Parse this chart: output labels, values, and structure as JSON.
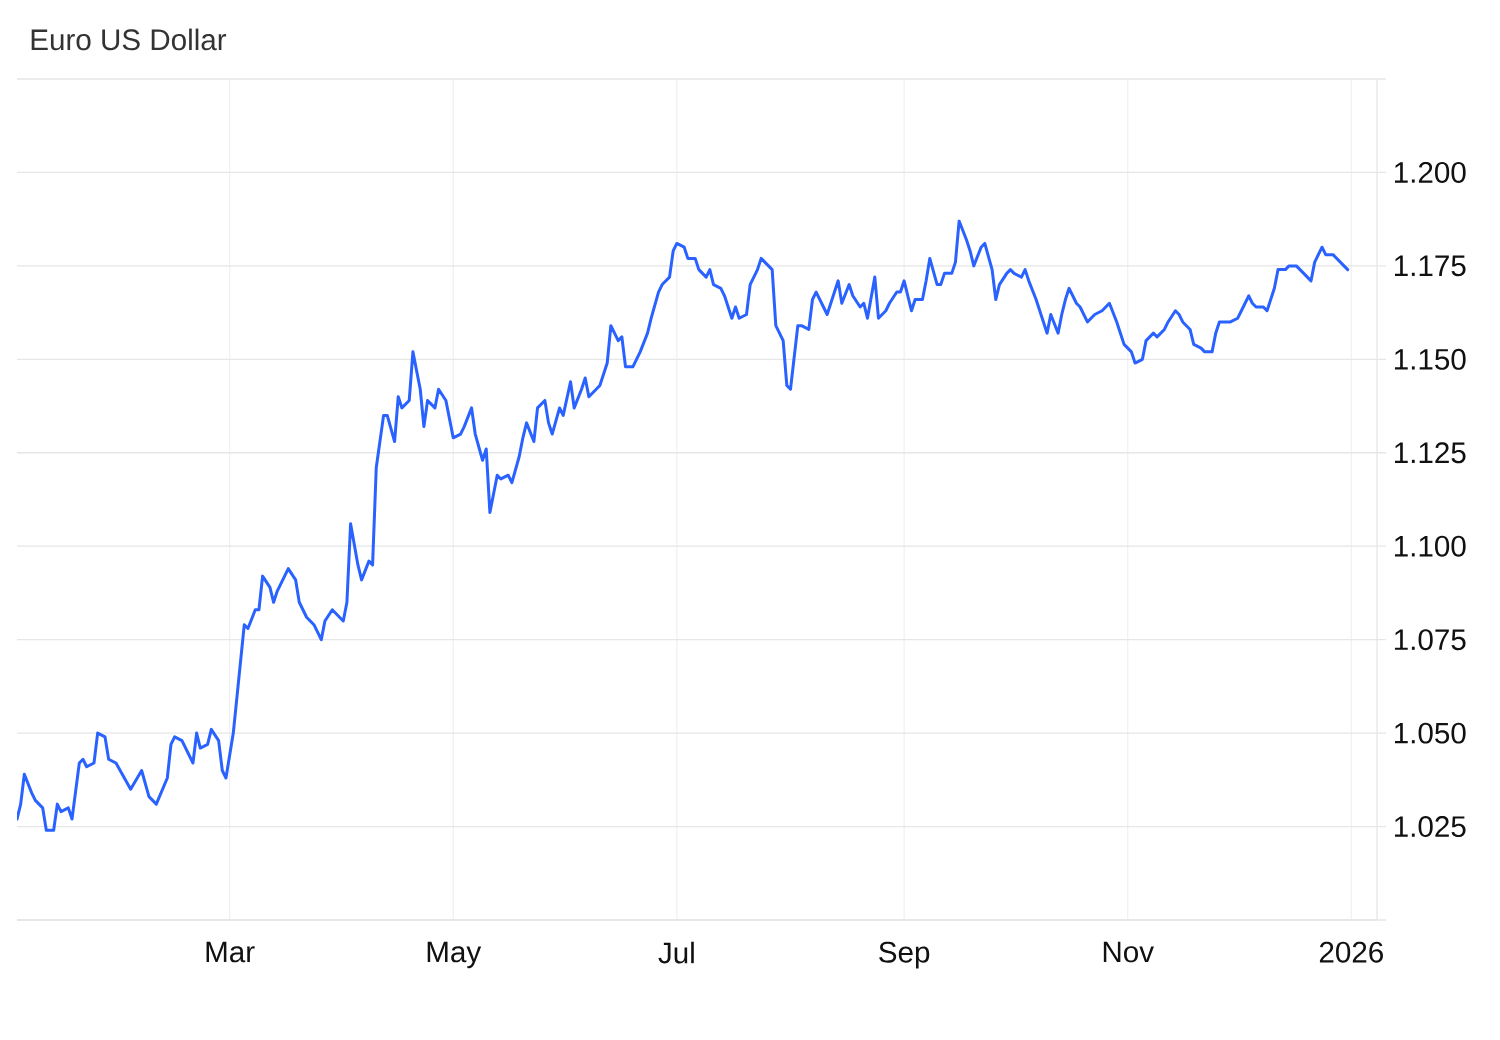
{
  "chart_data": {
    "type": "line",
    "title": "Euro US Dollar",
    "x": [
      "2025-01-02",
      "2025-01-03",
      "2025-01-04",
      "2025-01-06",
      "2025-01-07",
      "2025-01-09",
      "2025-01-10",
      "2025-01-12",
      "2025-01-13",
      "2025-01-14",
      "2025-01-16",
      "2025-01-17",
      "2025-01-19",
      "2025-01-20",
      "2025-01-21",
      "2025-01-23",
      "2025-01-24",
      "2025-01-26",
      "2025-01-27",
      "2025-01-29",
      "2025-02-02",
      "2025-02-05",
      "2025-02-07",
      "2025-02-09",
      "2025-02-12",
      "2025-02-13",
      "2025-02-14",
      "2025-02-16",
      "2025-02-19",
      "2025-02-20",
      "2025-02-21",
      "2025-02-23",
      "2025-02-24",
      "2025-02-26",
      "2025-02-27",
      "2025-02-28",
      "2025-03-02",
      "2025-03-05",
      "2025-03-06",
      "2025-03-08",
      "2025-03-09",
      "2025-03-10",
      "2025-03-12",
      "2025-03-13",
      "2025-03-14",
      "2025-03-16",
      "2025-03-17",
      "2025-03-19",
      "2025-03-20",
      "2025-03-22",
      "2025-03-24",
      "2025-03-26",
      "2025-03-27",
      "2025-03-29",
      "2025-03-30",
      "2025-04-01",
      "2025-04-02",
      "2025-04-03",
      "2025-04-05",
      "2025-04-06",
      "2025-04-08",
      "2025-04-09",
      "2025-04-10",
      "2025-04-12",
      "2025-04-13",
      "2025-04-15",
      "2025-04-16",
      "2025-04-17",
      "2025-04-19",
      "2025-04-20",
      "2025-04-22",
      "2025-04-23",
      "2025-04-24",
      "2025-04-26",
      "2025-04-27",
      "2025-04-29",
      "2025-04-30",
      "2025-05-01",
      "2025-05-03",
      "2025-05-04",
      "2025-05-06",
      "2025-05-07",
      "2025-05-09",
      "2025-05-10",
      "2025-05-11",
      "2025-05-13",
      "2025-05-14",
      "2025-05-16",
      "2025-05-17",
      "2025-05-19",
      "2025-05-20",
      "2025-05-21",
      "2025-05-23",
      "2025-05-24",
      "2025-05-26",
      "2025-05-27",
      "2025-05-28",
      "2025-05-30",
      "2025-05-31",
      "2025-06-02",
      "2025-06-03",
      "2025-06-05",
      "2025-06-06",
      "2025-06-07",
      "2025-06-09",
      "2025-06-10",
      "2025-06-12",
      "2025-06-13",
      "2025-06-15",
      "2025-06-16",
      "2025-06-17",
      "2025-06-19",
      "2025-06-20",
      "2025-06-21",
      "2025-06-23",
      "2025-06-24",
      "2025-06-26",
      "2025-06-27",
      "2025-06-29",
      "2025-06-30",
      "2025-07-01",
      "2025-07-03",
      "2025-07-04",
      "2025-07-06",
      "2025-07-07",
      "2025-07-09",
      "2025-07-10",
      "2025-07-11",
      "2025-07-13",
      "2025-07-14",
      "2025-07-16",
      "2025-07-17",
      "2025-07-18",
      "2025-07-20",
      "2025-07-21",
      "2025-07-23",
      "2025-07-24",
      "2025-07-26",
      "2025-07-27",
      "2025-07-28",
      "2025-07-30",
      "2025-07-31",
      "2025-08-01",
      "2025-08-03",
      "2025-08-04",
      "2025-08-06",
      "2025-08-07",
      "2025-08-08",
      "2025-08-10",
      "2025-08-11",
      "2025-08-13",
      "2025-08-14",
      "2025-08-15",
      "2025-08-17",
      "2025-08-18",
      "2025-08-20",
      "2025-08-21",
      "2025-08-22",
      "2025-08-24",
      "2025-08-25",
      "2025-08-27",
      "2025-08-28",
      "2025-08-30",
      "2025-08-31",
      "2025-09-01",
      "2025-09-03",
      "2025-09-04",
      "2025-09-06",
      "2025-09-07",
      "2025-09-08",
      "2025-09-10",
      "2025-09-11",
      "2025-09-12",
      "2025-09-14",
      "2025-09-15",
      "2025-09-16",
      "2025-09-18",
      "2025-09-19",
      "2025-09-20",
      "2025-09-22",
      "2025-09-23",
      "2025-09-25",
      "2025-09-26",
      "2025-09-27",
      "2025-09-29",
      "2025-09-30",
      "2025-10-01",
      "2025-10-03",
      "2025-10-04",
      "2025-10-05",
      "2025-10-07",
      "2025-10-08",
      "2025-10-10",
      "2025-10-11",
      "2025-10-13",
      "2025-10-14",
      "2025-10-15",
      "2025-10-16",
      "2025-10-18",
      "2025-10-19",
      "2025-10-21",
      "2025-10-22",
      "2025-10-23",
      "2025-10-25",
      "2025-10-26",
      "2025-10-27",
      "2025-10-29",
      "2025-10-30",
      "2025-10-31",
      "2025-11-02",
      "2025-11-03",
      "2025-11-05",
      "2025-11-06",
      "2025-11-08",
      "2025-11-09",
      "2025-11-11",
      "2025-11-12",
      "2025-11-14",
      "2025-11-15",
      "2025-11-16",
      "2025-11-18",
      "2025-11-19",
      "2025-11-21",
      "2025-11-22",
      "2025-11-24",
      "2025-11-25",
      "2025-11-26",
      "2025-11-28",
      "2025-11-29",
      "2025-12-01",
      "2025-12-02",
      "2025-12-04",
      "2025-12-05",
      "2025-12-06",
      "2025-12-08",
      "2025-12-09",
      "2025-12-11",
      "2025-12-12",
      "2025-12-14",
      "2025-12-15",
      "2025-12-17",
      "2025-12-18",
      "2025-12-20",
      "2025-12-21",
      "2025-12-22",
      "2025-12-24",
      "2025-12-25",
      "2025-12-27",
      "2025-12-28",
      "2025-12-30",
      "2025-12-31"
    ],
    "series": [
      {
        "color": "#2962ff",
        "values": [
          1.027,
          1.031,
          1.039,
          1.034,
          1.032,
          1.03,
          1.024,
          1.024,
          1.031,
          1.029,
          1.03,
          1.027,
          1.042,
          1.043,
          1.041,
          1.042,
          1.05,
          1.049,
          1.043,
          1.042,
          1.035,
          1.04,
          1.033,
          1.031,
          1.038,
          1.047,
          1.049,
          1.048,
          1.042,
          1.05,
          1.046,
          1.047,
          1.051,
          1.048,
          1.04,
          1.038,
          1.05,
          1.079,
          1.078,
          1.083,
          1.083,
          1.092,
          1.089,
          1.085,
          1.088,
          1.092,
          1.094,
          1.091,
          1.085,
          1.081,
          1.079,
          1.075,
          1.08,
          1.083,
          1.082,
          1.08,
          1.085,
          1.106,
          1.095,
          1.091,
          1.096,
          1.095,
          1.121,
          1.135,
          1.135,
          1.128,
          1.14,
          1.137,
          1.139,
          1.152,
          1.142,
          1.132,
          1.139,
          1.137,
          1.142,
          1.139,
          1.134,
          1.129,
          1.13,
          1.132,
          1.137,
          1.13,
          1.123,
          1.126,
          1.109,
          1.119,
          1.118,
          1.119,
          1.117,
          1.124,
          1.129,
          1.133,
          1.128,
          1.137,
          1.139,
          1.133,
          1.13,
          1.137,
          1.135,
          1.144,
          1.137,
          1.142,
          1.145,
          1.14,
          1.142,
          1.143,
          1.149,
          1.159,
          1.155,
          1.156,
          1.148,
          1.148,
          1.15,
          1.152,
          1.157,
          1.161,
          1.168,
          1.17,
          1.172,
          1.179,
          1.181,
          1.18,
          1.177,
          1.177,
          1.174,
          1.172,
          1.174,
          1.17,
          1.169,
          1.167,
          1.161,
          1.164,
          1.161,
          1.162,
          1.17,
          1.174,
          1.177,
          1.175,
          1.174,
          1.159,
          1.155,
          1.143,
          1.142,
          1.159,
          1.159,
          1.158,
          1.166,
          1.168,
          1.164,
          1.162,
          1.168,
          1.171,
          1.165,
          1.17,
          1.167,
          1.164,
          1.165,
          1.161,
          1.172,
          1.161,
          1.163,
          1.165,
          1.168,
          1.168,
          1.171,
          1.163,
          1.166,
          1.166,
          1.171,
          1.177,
          1.17,
          1.17,
          1.173,
          1.173,
          1.176,
          1.187,
          1.182,
          1.179,
          1.175,
          1.18,
          1.181,
          1.174,
          1.166,
          1.17,
          1.173,
          1.174,
          1.173,
          1.172,
          1.174,
          1.171,
          1.166,
          1.163,
          1.157,
          1.162,
          1.157,
          1.162,
          1.166,
          1.169,
          1.165,
          1.164,
          1.16,
          1.161,
          1.162,
          1.163,
          1.164,
          1.165,
          1.16,
          1.157,
          1.154,
          1.152,
          1.149,
          1.15,
          1.155,
          1.157,
          1.156,
          1.158,
          1.16,
          1.163,
          1.162,
          1.16,
          1.158,
          1.154,
          1.153,
          1.152,
          1.152,
          1.157,
          1.16,
          1.16,
          1.16,
          1.161,
          1.163,
          1.167,
          1.165,
          1.164,
          1.164,
          1.163,
          1.169,
          1.174,
          1.174,
          1.175,
          1.175,
          1.174,
          1.172,
          1.171,
          1.176,
          1.18,
          1.178,
          1.178,
          1.177,
          1.175,
          1.174
        ]
      }
    ],
    "xlim": [
      "2025-01-02",
      "2026-01-08"
    ],
    "xticks": [
      {
        "value": "2025-03-01",
        "label": "Mar"
      },
      {
        "value": "2025-05-01",
        "label": "May"
      },
      {
        "value": "2025-07-01",
        "label": "Jul"
      },
      {
        "value": "2025-09-01",
        "label": "Sep"
      },
      {
        "value": "2025-11-01",
        "label": "Nov"
      },
      {
        "value": "2026-01-01",
        "label": "2026"
      }
    ],
    "ylim": [
      1.0,
      1.225
    ],
    "yticks": [
      {
        "value": 1.0,
        "label": null
      },
      {
        "value": 1.025,
        "label": "1.025"
      },
      {
        "value": 1.05,
        "label": "1.050"
      },
      {
        "value": 1.075,
        "label": "1.075"
      },
      {
        "value": 1.1,
        "label": "1.100"
      },
      {
        "value": 1.125,
        "label": "1.125"
      },
      {
        "value": 1.15,
        "label": "1.150"
      },
      {
        "value": 1.175,
        "label": "1.175"
      },
      {
        "value": 1.2,
        "label": "1.200"
      },
      {
        "value": 1.225,
        "label": null
      }
    ],
    "grid": true
  }
}
